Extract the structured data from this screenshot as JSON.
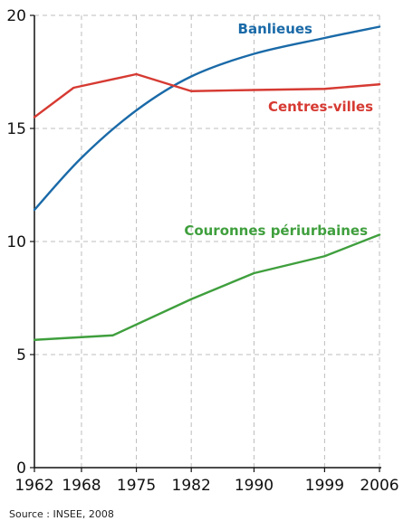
{
  "chart_data": {
    "type": "line",
    "title": "",
    "xlabel": "",
    "ylabel": "",
    "x": [
      1962,
      1968,
      1975,
      1982,
      1990,
      1999,
      2006
    ],
    "x_tick_labels": [
      "1962",
      "1968",
      "1975",
      "1982",
      "1990",
      "1999",
      "2006"
    ],
    "y_ticks": [
      0,
      5,
      10,
      15,
      20
    ],
    "ylim": [
      0,
      20
    ],
    "grid": "dashed",
    "legend": "none (series labeled directly on the chart)",
    "series": [
      {
        "name": "Banlieues",
        "color": "#1a6aa8",
        "x": [
          1962,
          1968,
          1975,
          1982,
          1990,
          1999,
          2006
        ],
        "values": [
          11.4,
          13.7,
          15.8,
          17.3,
          18.3,
          19.0,
          19.5
        ]
      },
      {
        "name": "Centres-villes",
        "color": "#d63a32",
        "x": [
          1962,
          1967,
          1975,
          1982,
          1990,
          1999,
          2006
        ],
        "values": [
          15.5,
          16.8,
          17.4,
          16.65,
          16.7,
          16.75,
          16.95
        ]
      },
      {
        "name": "Couronnes périurbaines",
        "color": "#3f9f3d",
        "x": [
          1962,
          1972,
          1982,
          1990,
          1999,
          2006
        ],
        "values": [
          5.65,
          5.85,
          7.45,
          8.6,
          9.35,
          10.3
        ]
      }
    ]
  },
  "source": "Source : INSEE, 2008"
}
